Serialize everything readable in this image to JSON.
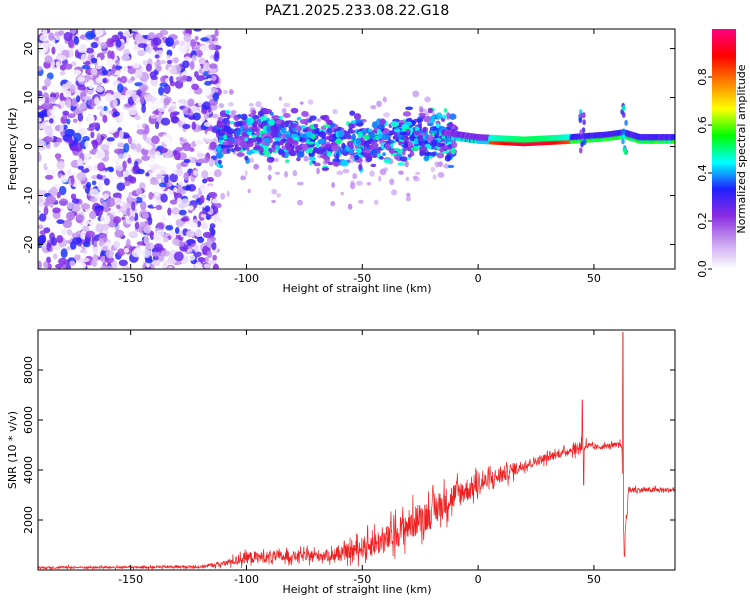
{
  "title": "PAZ1.2025.233.08.22.G18",
  "chart_data": [
    {
      "type": "heatmap",
      "xlabel": "Height of straight line (km)",
      "ylabel": "Frequency (Hz)",
      "xlim": [
        -190,
        85
      ],
      "ylim": [
        -25,
        24
      ],
      "xticks": [
        -150,
        -100,
        -50,
        0,
        50
      ],
      "yticks": [
        -20,
        -10,
        0,
        10,
        20
      ],
      "xtick_labels": [
        "-150",
        "-100",
        "-50",
        "0",
        "50"
      ],
      "ytick_labels": [
        "-20",
        "-10",
        "0",
        "10",
        "20"
      ],
      "colorbar": {
        "label": "Normalized spectral amplitude",
        "range": [
          0,
          1
        ],
        "ticks": [
          0,
          0.2,
          0.4,
          0.6,
          0.8
        ],
        "tick_labels": [
          "0.0",
          "0.2",
          "0.4",
          "0.6",
          "0.8"
        ],
        "colors": [
          "#ffffff",
          "#c9a0f0",
          "#8a2be2",
          "#2020ff",
          "#00ffff",
          "#00ff00",
          "#ffff00",
          "#ff8000",
          "#ff0000",
          "#ff0080"
        ]
      },
      "features": {
        "noise_region_x": [
          -190,
          -112
        ],
        "signal_track": [
          [
            -110,
            3
          ],
          [
            -90,
            2
          ],
          [
            -70,
            1
          ],
          [
            -50,
            0.5
          ],
          [
            -30,
            2
          ],
          [
            -15,
            2
          ],
          [
            0,
            1
          ],
          [
            20,
            0.5
          ],
          [
            40,
            1
          ],
          [
            55,
            1.5
          ],
          [
            63,
            2
          ],
          [
            70,
            1
          ],
          [
            85,
            1
          ]
        ],
        "peak_region_x": [
          5,
          40
        ]
      }
    },
    {
      "type": "line",
      "xlabel": "Height of straight line (km)",
      "ylabel": "SNR (10 * v/v)",
      "xlim": [
        -190,
        85
      ],
      "ylim": [
        0,
        9600
      ],
      "xticks": [
        -150,
        -100,
        -50,
        0,
        50
      ],
      "yticks": [
        2000,
        4000,
        6000,
        8000
      ],
      "xtick_labels": [
        "-150",
        "-100",
        "-50",
        "0",
        "50"
      ],
      "ytick_labels": [
        "2000",
        "4000",
        "6000",
        "8000"
      ],
      "color": "#ee2020",
      "envelope": {
        "x": [
          -190,
          -150,
          -120,
          -110,
          -100,
          -80,
          -60,
          -50,
          -40,
          -30,
          -20,
          -10,
          0,
          10,
          20,
          30,
          40,
          44,
          46,
          50,
          60,
          62,
          63,
          65,
          70,
          80,
          85
        ],
        "mean": [
          100,
          110,
          130,
          250,
          500,
          550,
          600,
          900,
          1200,
          1800,
          2300,
          3000,
          3400,
          3800,
          4200,
          4500,
          4800,
          4900,
          5000,
          4900,
          5000,
          5100,
          1000,
          3200,
          3200,
          3200,
          3200
        ],
        "amp": [
          60,
          60,
          80,
          150,
          350,
          300,
          350,
          600,
          800,
          900,
          900,
          800,
          600,
          500,
          300,
          250,
          200,
          500,
          300,
          150,
          150,
          300,
          400,
          200,
          150,
          150,
          150
        ]
      },
      "spikes": [
        {
          "x": 45,
          "y": 6800
        },
        {
          "x": 45.6,
          "y": 3400
        },
        {
          "x": 62.5,
          "y": 9500
        },
        {
          "x": 63.2,
          "y": 550
        }
      ]
    }
  ]
}
